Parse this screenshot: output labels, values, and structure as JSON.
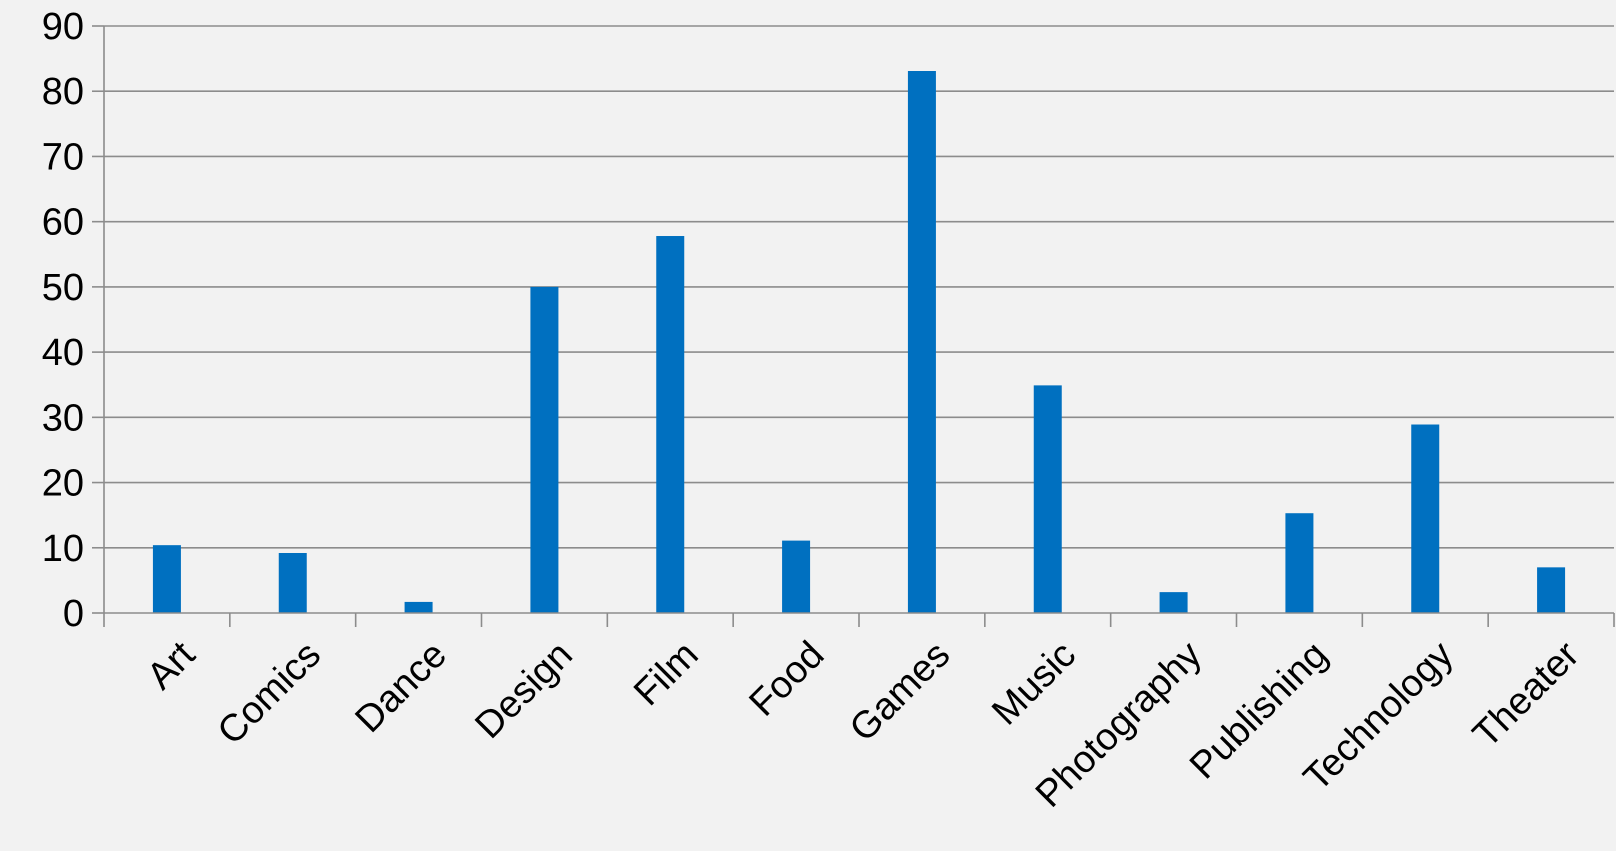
{
  "chart_data": {
    "type": "bar",
    "title": "",
    "xlabel": "",
    "ylabel": "",
    "categories": [
      "Art",
      "Comics",
      "Dance",
      "Design",
      "Film",
      "Food",
      "Games",
      "Music",
      "Photography",
      "Publishing",
      "Technology",
      "Theater"
    ],
    "values": [
      10.4,
      9.2,
      1.7,
      50,
      57.8,
      11.1,
      83.1,
      34.9,
      3.2,
      15.3,
      28.9,
      7
    ],
    "ylim": [
      0,
      90
    ],
    "yticks": [
      0,
      10,
      20,
      30,
      40,
      50,
      60,
      70,
      80,
      90
    ],
    "grid": true,
    "legend": "none",
    "bar_color": "#0070c0",
    "grid_color": "#8c8c8c",
    "background": "#f2f2f2"
  }
}
